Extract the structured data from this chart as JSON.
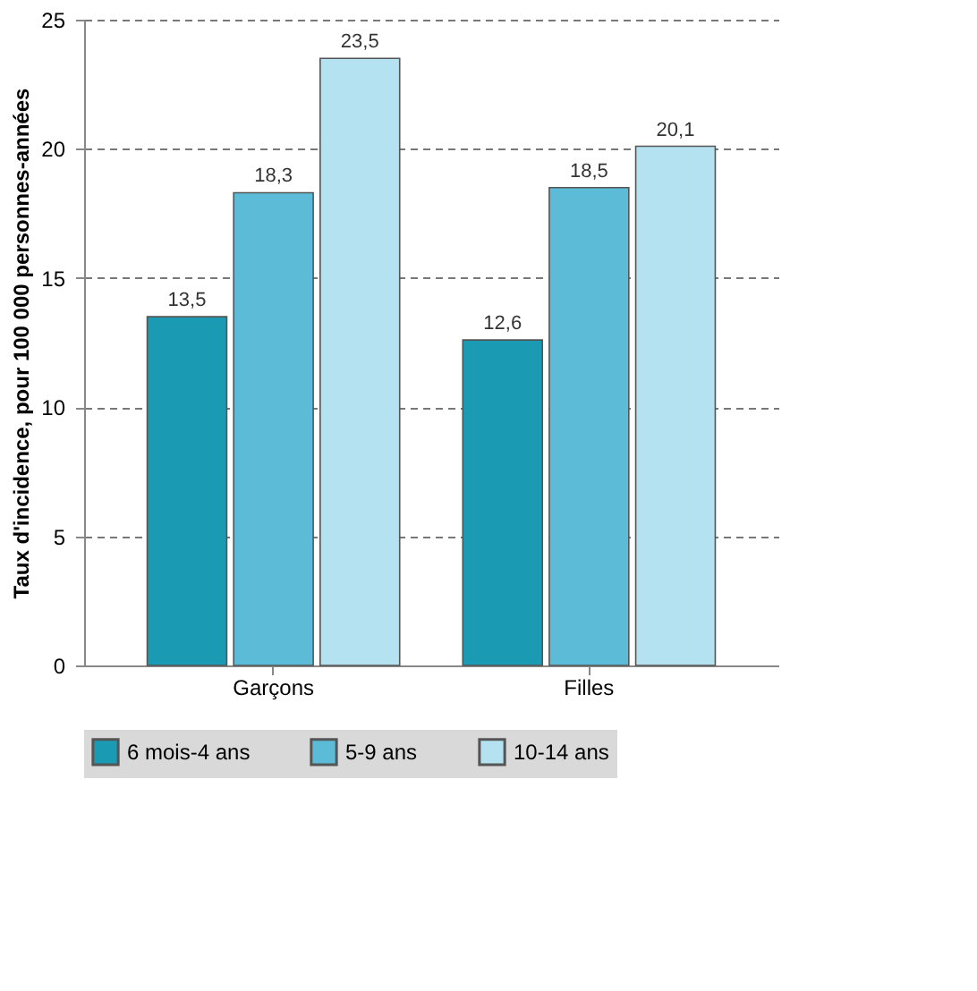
{
  "chart_data": {
    "type": "bar",
    "ylabel": "Taux d'incidence, pour 100 000 personnes-années",
    "categories": [
      "Garçons",
      "Filles"
    ],
    "series": [
      {
        "name": "6 mois-4 ans",
        "color": "#1b9ab4",
        "values": [
          13.5,
          12.6
        ]
      },
      {
        "name": "5-9 ans",
        "color": "#5cbcd8",
        "values": [
          18.3,
          18.5
        ]
      },
      {
        "name": "10-14 ans",
        "color": "#b5e2f0",
        "values": [
          23.5,
          20.1
        ]
      }
    ],
    "value_labels": [
      [
        "13,5",
        "12,6"
      ],
      [
        "18,3",
        "18,5"
      ],
      [
        "23,5",
        "20,1"
      ]
    ],
    "ylim": [
      0,
      25
    ],
    "yticks": [
      0,
      5,
      10,
      15,
      20,
      25
    ],
    "grid": "y",
    "legend": "bottom"
  }
}
